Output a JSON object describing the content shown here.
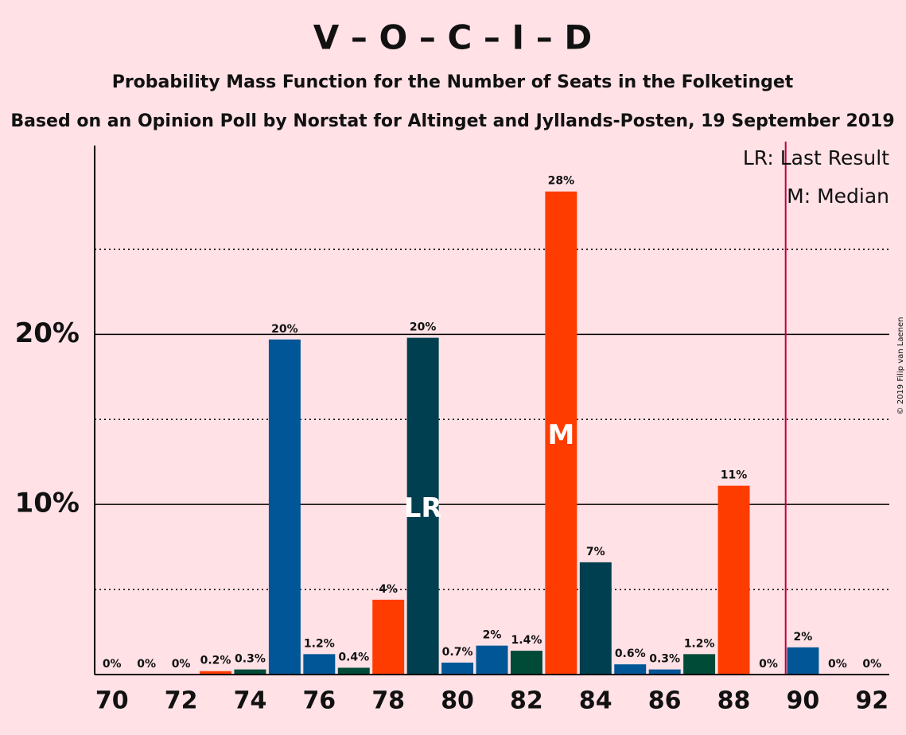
{
  "chart_data": {
    "type": "bar",
    "title": "V – O – C – I – D",
    "subtitle": "Probability Mass Function for the Number of Seats in the Folketinget",
    "subtitle2": "Based on an Opinion Poll by Norstat for Altinget and Jyllands-Posten, 19 September 2019",
    "copyright": "© 2019 Filip van Laenen",
    "legend": [
      "LR: Last Result",
      "M: Median"
    ],
    "x": [
      70,
      71,
      72,
      73,
      74,
      75,
      76,
      77,
      78,
      79,
      80,
      81,
      82,
      83,
      84,
      85,
      86,
      87,
      88,
      89,
      90,
      91,
      92
    ],
    "values": [
      0,
      0,
      0,
      0.2,
      0.3,
      19.7,
      1.2,
      0.4,
      4.4,
      19.8,
      0.7,
      1.7,
      1.4,
      28.4,
      6.6,
      0.6,
      0.3,
      1.2,
      11.1,
      0,
      1.6,
      0,
      0
    ],
    "value_labels": [
      "0%",
      "0%",
      "0%",
      "0.2%",
      "0.3%",
      "20%",
      "1.2%",
      "0.4%",
      "4%",
      "20%",
      "0.7%",
      "2%",
      "1.4%",
      "28%",
      "7%",
      "0.6%",
      "0.3%",
      "1.2%",
      "11%",
      "0%",
      "2%",
      "0%",
      "0%"
    ],
    "colors": [
      "#005696",
      "#005696",
      "#004a38",
      "#ff3c00",
      "#004a38",
      "#005696",
      "#005696",
      "#004a38",
      "#ff3c00",
      "#003f4f",
      "#005696",
      "#005696",
      "#004a38",
      "#ff3c00",
      "#003f4f",
      "#005696",
      "#005696",
      "#004a38",
      "#ff3c00",
      "#ff3c00",
      "#005696",
      "#005696",
      "#004a38"
    ],
    "annotations": [
      {
        "x": 79,
        "text": "LR"
      },
      {
        "x": 83,
        "text": "M"
      }
    ],
    "vline": {
      "x": 89.5,
      "color": "#c0003c"
    },
    "xlim": [
      69.5,
      92.5
    ],
    "xticks": [
      70,
      72,
      74,
      76,
      78,
      80,
      82,
      84,
      86,
      88,
      90,
      92
    ],
    "ylim": [
      0,
      31.1
    ],
    "yticks": [
      {
        "value": 10,
        "label": "10%"
      },
      {
        "value": 20,
        "label": "20%"
      }
    ],
    "minor_yticks": [
      5,
      15,
      25
    ],
    "grid": true
  }
}
